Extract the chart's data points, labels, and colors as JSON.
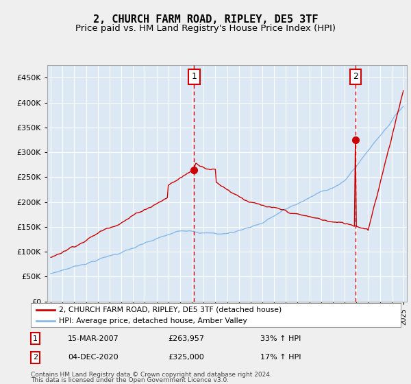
{
  "title": "2, CHURCH FARM ROAD, RIPLEY, DE5 3TF",
  "subtitle": "Price paid vs. HM Land Registry's House Price Index (HPI)",
  "title_fontsize": 11,
  "subtitle_fontsize": 9.5,
  "background_color": "#dce9f5",
  "fig_color": "#f0f0f0",
  "hpi_color": "#88b8e8",
  "price_color": "#cc0000",
  "dashed_line_color": "#cc0000",
  "ylim": [
    0,
    475000
  ],
  "yticks": [
    0,
    50000,
    100000,
    150000,
    200000,
    250000,
    300000,
    350000,
    400000,
    450000
  ],
  "legend_label_price": "2, CHURCH FARM ROAD, RIPLEY, DE5 3TF (detached house)",
  "legend_label_hpi": "HPI: Average price, detached house, Amber Valley",
  "sale1_date": "15-MAR-2007",
  "sale1_price": "£263,957",
  "sale1_pct": "33% ↑ HPI",
  "sale1_year": 2007.2,
  "sale1_value": 263957,
  "sale2_date": "04-DEC-2020",
  "sale2_price": "£325,000",
  "sale2_pct": "17% ↑ HPI",
  "sale2_year": 2020.92,
  "sale2_value": 325000,
  "footnote1": "Contains HM Land Registry data © Crown copyright and database right 2024.",
  "footnote2": "This data is licensed under the Open Government Licence v3.0."
}
